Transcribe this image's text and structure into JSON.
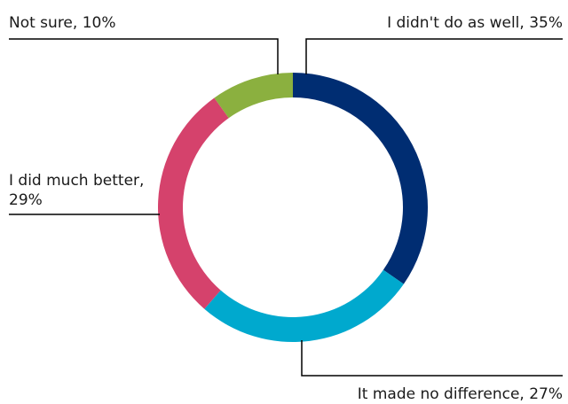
{
  "chart_data": {
    "type": "pie",
    "variant": "donut",
    "title": "",
    "legend": "none",
    "slices": [
      {
        "label": "I didn't do as well",
        "value": 35,
        "color": "#002D72",
        "display": [
          "I didn't do as well, 35%"
        ]
      },
      {
        "label": "It made no difference",
        "value": 27,
        "color": "#00A9CE",
        "display": [
          "It made no difference, 27%"
        ]
      },
      {
        "label": "I did much better",
        "value": 29,
        "color": "#D5426C",
        "display": [
          "I did much better,",
          "29%"
        ]
      },
      {
        "label": "Not sure",
        "value": 10,
        "color": "#8BB03F",
        "display": [
          "Not sure, 10%"
        ]
      }
    ]
  }
}
